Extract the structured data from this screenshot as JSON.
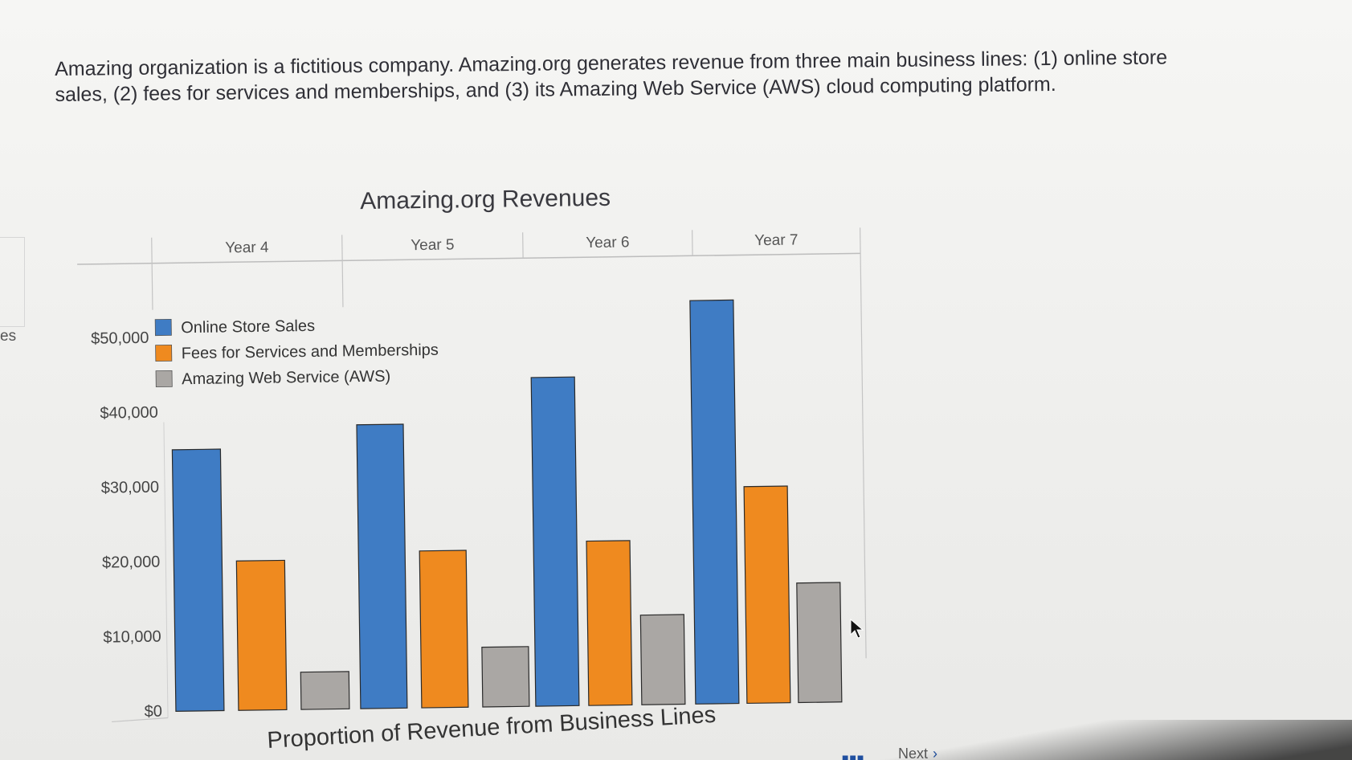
{
  "intro_text": "Amazing organization is a fictitious company. Amazing.org generates revenue from three main business lines: (1) online store sales, (2) fees for services and memberships, and (3) its Amazing Web Service (AWS) cloud computing platform.",
  "left_edge_fragment": "es",
  "nav": {
    "dots": "■■■",
    "next_label": "Next",
    "next_chevron": "›"
  },
  "chart_data": {
    "type": "bar",
    "title": "Amazing.org Revenues",
    "subtitle_bottom": "Proportion of Revenue from Business Lines",
    "categories": [
      "Year 4",
      "Year 5",
      "Year 6",
      "Year 7"
    ],
    "series": [
      {
        "name": "Online Store Sales",
        "color": "#3f7cc4",
        "values": [
          35000,
          38000,
          44000,
          54000
        ]
      },
      {
        "name": "Fees for Services and Memberships",
        "color": "#ef8a1f",
        "values": [
          20000,
          21000,
          22000,
          29000
        ]
      },
      {
        "name": "Amazing Web Service (AWS)",
        "color": "#aaa7a4",
        "values": [
          5000,
          8000,
          12000,
          16000
        ]
      }
    ],
    "ylim": [
      0,
      55000
    ],
    "yticks": [
      {
        "value": 0,
        "label": "$0"
      },
      {
        "value": 10000,
        "label": "$10,000"
      },
      {
        "value": 20000,
        "label": "$20,000"
      },
      {
        "value": 30000,
        "label": "$30,000"
      },
      {
        "value": 40000,
        "label": "$40,000"
      },
      {
        "value": 50000,
        "label": "$50,000"
      }
    ],
    "legend_position": "top-left",
    "grid": false
  }
}
